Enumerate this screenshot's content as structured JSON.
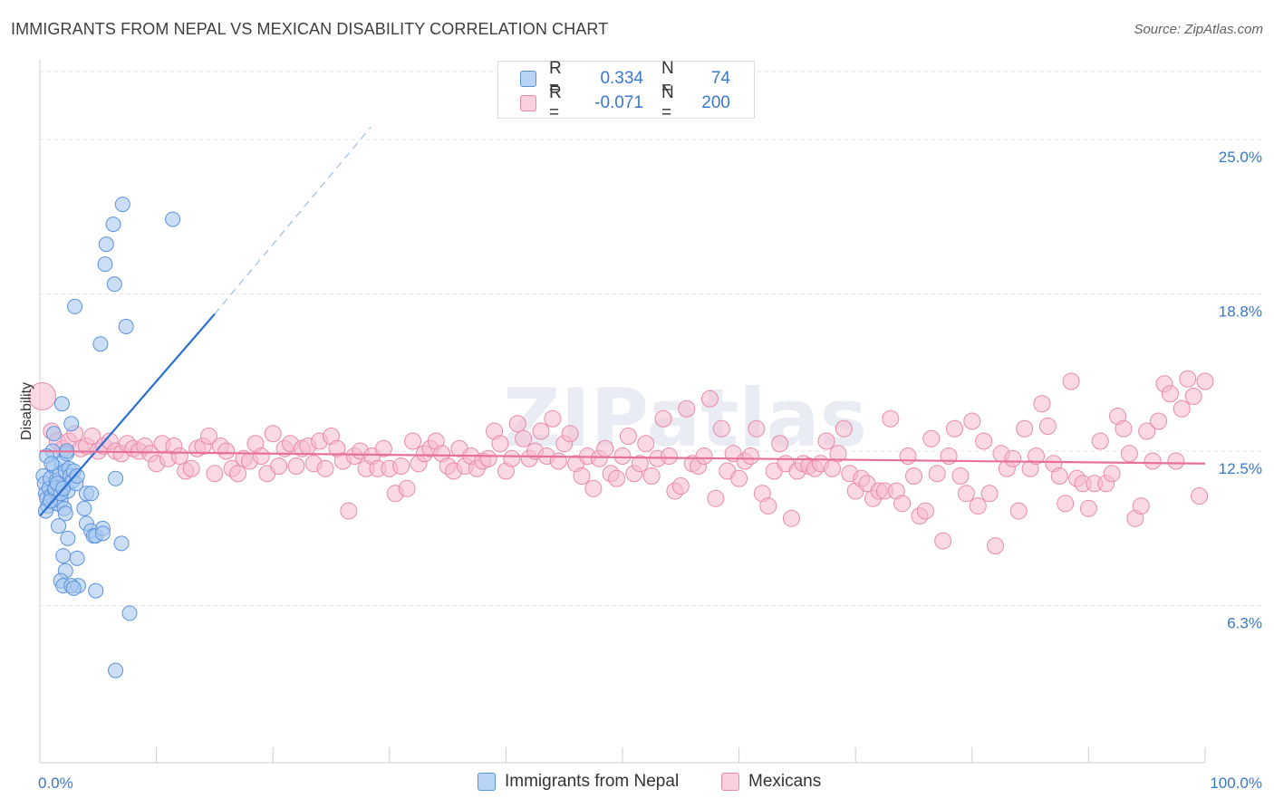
{
  "header": {
    "title": "IMMIGRANTS FROM NEPAL VS MEXICAN DISABILITY CORRELATION CHART",
    "source": "Source: ZipAtlas.com"
  },
  "legend": {
    "series1": {
      "r_label": "R =",
      "r_value": "0.334",
      "n_label": "N =",
      "n_value": "74"
    },
    "series2": {
      "r_label": "R =",
      "r_value": "-0.071",
      "n_label": "N =",
      "n_value": "200"
    }
  },
  "bottom_legend": {
    "series1_label": "Immigrants from Nepal",
    "series2_label": "Mexicans"
  },
  "colors": {
    "blue_fill": "#a9c8f0",
    "blue_stroke": "#5b93dd",
    "blue_line": "#2b6fd0",
    "pink_fill": "#f6b9cd",
    "pink_stroke": "#e98aab",
    "pink_line": "#e8709a",
    "grid": "#e3e3e3",
    "tick_text": "#3a78c9"
  },
  "chart_data": {
    "type": "scatter",
    "title": "IMMIGRANTS FROM NEPAL VS MEXICAN DISABILITY CORRELATION CHART",
    "xlabel": "",
    "ylabel": "Disability",
    "xlim": [
      0,
      100
    ],
    "ylim": [
      0,
      28.2
    ],
    "x_tick_labels": [
      "0.0%",
      "100.0%"
    ],
    "y_ticks": [
      {
        "value": 6.3,
        "label": "6.3%"
      },
      {
        "value": 12.5,
        "label": "12.5%"
      },
      {
        "value": 18.8,
        "label": "18.8%"
      },
      {
        "value": 25.0,
        "label": "25.0%"
      }
    ],
    "watermark": "ZIPatlas",
    "series": [
      {
        "name": "Immigrants from Nepal",
        "R": 0.334,
        "N": 74,
        "trend": {
          "x": [
            0,
            15
          ],
          "y": [
            9.9,
            18.0
          ],
          "dashed_to": {
            "x": 28.4,
            "y": 25.5
          }
        },
        "points": [
          [
            0.3,
            11.5
          ],
          [
            0.4,
            11.2
          ],
          [
            0.5,
            10.8
          ],
          [
            0.6,
            10.6
          ],
          [
            0.7,
            10.3
          ],
          [
            0.8,
            11.0
          ],
          [
            0.9,
            11.4
          ],
          [
            1.0,
            10.7
          ],
          [
            1.1,
            12.5
          ],
          [
            1.2,
            11.9
          ],
          [
            1.3,
            10.9
          ],
          [
            1.4,
            11.3
          ],
          [
            1.5,
            10.4
          ],
          [
            1.6,
            10.8
          ],
          [
            1.7,
            11.6
          ],
          [
            1.8,
            10.5
          ],
          [
            1.9,
            12.0
          ],
          [
            2.0,
            11.1
          ],
          [
            2.1,
            10.2
          ],
          [
            2.2,
            11.7
          ],
          [
            2.3,
            12.4
          ],
          [
            2.4,
            10.9
          ],
          [
            2.5,
            11.8
          ],
          [
            2.6,
            11.5
          ],
          [
            2.7,
            13.6
          ],
          [
            2.8,
            11.3
          ],
          [
            2.9,
            11.7
          ],
          [
            0.5,
            10.1
          ],
          [
            0.9,
            10.5
          ],
          [
            1.3,
            11.0
          ],
          [
            1.8,
            10.8
          ],
          [
            2.2,
            10.0
          ],
          [
            0.6,
            12.3
          ],
          [
            1.0,
            12.0
          ],
          [
            1.5,
            11.2
          ],
          [
            2.0,
            11.0
          ],
          [
            1.6,
            9.5
          ],
          [
            1.9,
            14.4
          ],
          [
            3.0,
            18.3
          ],
          [
            2.4,
            9.0
          ],
          [
            3.1,
            11.2
          ],
          [
            3.2,
            11.5
          ],
          [
            4.0,
            10.8
          ],
          [
            4.4,
            10.8
          ],
          [
            4.0,
            9.6
          ],
          [
            4.4,
            9.3
          ],
          [
            4.6,
            9.1
          ],
          [
            4.8,
            9.1
          ],
          [
            5.4,
            9.4
          ],
          [
            5.4,
            9.2
          ],
          [
            3.2,
            8.2
          ],
          [
            3.3,
            7.1
          ],
          [
            2.0,
            8.3
          ],
          [
            2.2,
            7.7
          ],
          [
            1.8,
            7.3
          ],
          [
            2.0,
            7.1
          ],
          [
            2.7,
            7.1
          ],
          [
            2.9,
            7.0
          ],
          [
            4.8,
            6.9
          ],
          [
            7.0,
            8.8
          ],
          [
            7.7,
            6.0
          ],
          [
            6.5,
            3.7
          ],
          [
            3.8,
            10.2
          ],
          [
            6.5,
            11.4
          ],
          [
            5.2,
            16.8
          ],
          [
            7.4,
            17.5
          ],
          [
            6.3,
            21.6
          ],
          [
            5.6,
            20.0
          ],
          [
            7.1,
            22.4
          ],
          [
            11.4,
            21.8
          ],
          [
            5.7,
            20.8
          ],
          [
            6.4,
            19.2
          ],
          [
            2.3,
            12.5
          ],
          [
            1.2,
            13.2
          ]
        ]
      },
      {
        "name": "Mexicans",
        "R": -0.071,
        "N": 200,
        "trend": {
          "x": [
            0,
            100
          ],
          "y": [
            12.5,
            12.0
          ]
        },
        "points": [
          [
            0.2,
            14.7
          ],
          [
            1.0,
            13.3
          ],
          [
            1.5,
            12.9
          ],
          [
            2.0,
            12.6
          ],
          [
            2.5,
            12.9
          ],
          [
            3.0,
            13.2
          ],
          [
            3.5,
            12.6
          ],
          [
            4.0,
            12.7
          ],
          [
            4.5,
            13.1
          ],
          [
            5.0,
            12.5
          ],
          [
            5.5,
            12.7
          ],
          [
            6.0,
            12.9
          ],
          [
            6.5,
            12.5
          ],
          [
            7.0,
            12.4
          ],
          [
            7.5,
            12.8
          ],
          [
            8.0,
            12.6
          ],
          [
            8.5,
            12.5
          ],
          [
            9.0,
            12.7
          ],
          [
            9.5,
            12.4
          ],
          [
            10.0,
            12.0
          ],
          [
            10.5,
            12.8
          ],
          [
            11.0,
            12.2
          ],
          [
            11.5,
            12.7
          ],
          [
            12.0,
            12.3
          ],
          [
            12.5,
            11.7
          ],
          [
            13.0,
            11.8
          ],
          [
            13.5,
            12.6
          ],
          [
            14.0,
            12.7
          ],
          [
            14.5,
            13.1
          ],
          [
            15.0,
            11.6
          ],
          [
            15.5,
            12.7
          ],
          [
            16.0,
            12.5
          ],
          [
            16.5,
            11.8
          ],
          [
            17.0,
            11.6
          ],
          [
            17.5,
            12.2
          ],
          [
            18.0,
            12.1
          ],
          [
            18.5,
            12.8
          ],
          [
            19.0,
            12.3
          ],
          [
            19.5,
            11.6
          ],
          [
            20.0,
            13.2
          ],
          [
            20.5,
            11.9
          ],
          [
            21.0,
            12.6
          ],
          [
            21.5,
            12.8
          ],
          [
            22.0,
            11.9
          ],
          [
            22.5,
            12.6
          ],
          [
            23.0,
            12.7
          ],
          [
            23.5,
            12.0
          ],
          [
            24.0,
            12.9
          ],
          [
            24.5,
            11.8
          ],
          [
            25.0,
            13.1
          ],
          [
            25.5,
            12.6
          ],
          [
            26.0,
            12.1
          ],
          [
            26.5,
            10.1
          ],
          [
            27.0,
            12.3
          ],
          [
            27.5,
            12.5
          ],
          [
            28.0,
            11.8
          ],
          [
            28.5,
            12.3
          ],
          [
            29.0,
            11.8
          ],
          [
            29.5,
            12.6
          ],
          [
            30.0,
            11.8
          ],
          [
            30.5,
            10.8
          ],
          [
            31.0,
            11.9
          ],
          [
            31.5,
            11.0
          ],
          [
            32.0,
            12.9
          ],
          [
            32.5,
            12.0
          ],
          [
            33.0,
            12.4
          ],
          [
            33.5,
            12.6
          ],
          [
            34.0,
            12.9
          ],
          [
            34.5,
            12.4
          ],
          [
            35.0,
            11.9
          ],
          [
            35.5,
            11.7
          ],
          [
            36.0,
            12.6
          ],
          [
            36.5,
            11.9
          ],
          [
            37.0,
            12.3
          ],
          [
            37.5,
            11.8
          ],
          [
            38.0,
            12.1
          ],
          [
            38.5,
            12.2
          ],
          [
            39.0,
            13.3
          ],
          [
            39.5,
            12.8
          ],
          [
            40.0,
            11.7
          ],
          [
            40.5,
            12.2
          ],
          [
            41.0,
            13.6
          ],
          [
            41.5,
            13.0
          ],
          [
            42.0,
            12.2
          ],
          [
            42.5,
            12.5
          ],
          [
            43.0,
            13.3
          ],
          [
            43.5,
            12.3
          ],
          [
            44.0,
            13.8
          ],
          [
            44.5,
            12.1
          ],
          [
            45.0,
            12.8
          ],
          [
            45.5,
            13.2
          ],
          [
            46.0,
            12.0
          ],
          [
            46.5,
            11.5
          ],
          [
            47.0,
            12.3
          ],
          [
            47.5,
            11.0
          ],
          [
            48.0,
            12.2
          ],
          [
            48.5,
            12.6
          ],
          [
            49.0,
            11.6
          ],
          [
            49.5,
            11.4
          ],
          [
            50.0,
            12.3
          ],
          [
            50.5,
            13.1
          ],
          [
            51.0,
            11.6
          ],
          [
            51.5,
            12.0
          ],
          [
            52.0,
            12.8
          ],
          [
            52.5,
            11.5
          ],
          [
            53.0,
            12.2
          ],
          [
            53.5,
            13.8
          ],
          [
            54.0,
            12.3
          ],
          [
            54.5,
            10.9
          ],
          [
            55.0,
            11.1
          ],
          [
            55.5,
            14.2
          ],
          [
            56.0,
            12.0
          ],
          [
            56.5,
            11.9
          ],
          [
            57.0,
            12.3
          ],
          [
            57.5,
            14.6
          ],
          [
            58.0,
            10.6
          ],
          [
            58.5,
            13.4
          ],
          [
            59.0,
            11.7
          ],
          [
            59.5,
            12.4
          ],
          [
            60.0,
            11.4
          ],
          [
            60.5,
            12.1
          ],
          [
            61.0,
            12.3
          ],
          [
            61.5,
            13.4
          ],
          [
            62.0,
            10.8
          ],
          [
            62.5,
            10.3
          ],
          [
            63.0,
            11.7
          ],
          [
            63.5,
            12.8
          ],
          [
            64.0,
            12.0
          ],
          [
            64.5,
            9.8
          ],
          [
            65.0,
            11.7
          ],
          [
            65.5,
            12.0
          ],
          [
            66.0,
            11.9
          ],
          [
            66.5,
            11.8
          ],
          [
            67.0,
            12.0
          ],
          [
            67.5,
            12.9
          ],
          [
            68.0,
            11.8
          ],
          [
            68.5,
            12.4
          ],
          [
            69.0,
            13.4
          ],
          [
            69.5,
            11.6
          ],
          [
            70.0,
            10.9
          ],
          [
            70.5,
            11.4
          ],
          [
            71.0,
            11.2
          ],
          [
            71.5,
            10.6
          ],
          [
            72.0,
            10.9
          ],
          [
            72.5,
            10.9
          ],
          [
            73.0,
            13.8
          ],
          [
            73.5,
            10.9
          ],
          [
            74.0,
            10.4
          ],
          [
            74.5,
            12.3
          ],
          [
            75.0,
            11.5
          ],
          [
            75.5,
            9.9
          ],
          [
            76.0,
            10.1
          ],
          [
            76.5,
            13.0
          ],
          [
            77.0,
            11.6
          ],
          [
            77.5,
            8.9
          ],
          [
            78.0,
            12.3
          ],
          [
            78.5,
            13.4
          ],
          [
            79.0,
            11.5
          ],
          [
            79.5,
            10.8
          ],
          [
            80.0,
            13.7
          ],
          [
            80.5,
            10.3
          ],
          [
            81.0,
            12.9
          ],
          [
            81.5,
            10.8
          ],
          [
            82.0,
            8.7
          ],
          [
            82.5,
            12.4
          ],
          [
            83.0,
            11.8
          ],
          [
            83.5,
            12.2
          ],
          [
            84.0,
            10.1
          ],
          [
            84.5,
            13.4
          ],
          [
            85.0,
            11.8
          ],
          [
            85.5,
            12.3
          ],
          [
            86.0,
            14.4
          ],
          [
            86.5,
            13.5
          ],
          [
            87.0,
            12.0
          ],
          [
            87.5,
            11.5
          ],
          [
            88.0,
            10.4
          ],
          [
            88.5,
            15.3
          ],
          [
            89.0,
            11.4
          ],
          [
            89.5,
            11.2
          ],
          [
            90.0,
            10.2
          ],
          [
            90.5,
            11.2
          ],
          [
            91.0,
            12.9
          ],
          [
            91.5,
            11.2
          ],
          [
            92.0,
            11.6
          ],
          [
            92.5,
            13.9
          ],
          [
            93.0,
            13.4
          ],
          [
            93.5,
            12.4
          ],
          [
            94.0,
            9.8
          ],
          [
            94.5,
            10.3
          ],
          [
            95.0,
            13.3
          ],
          [
            95.5,
            12.1
          ],
          [
            96.0,
            13.7
          ],
          [
            96.5,
            15.2
          ],
          [
            97.0,
            14.8
          ],
          [
            97.5,
            12.1
          ],
          [
            98.0,
            14.2
          ],
          [
            98.5,
            15.4
          ],
          [
            99.0,
            14.7
          ],
          [
            99.5,
            10.7
          ],
          [
            100.0,
            15.3
          ]
        ]
      }
    ]
  }
}
